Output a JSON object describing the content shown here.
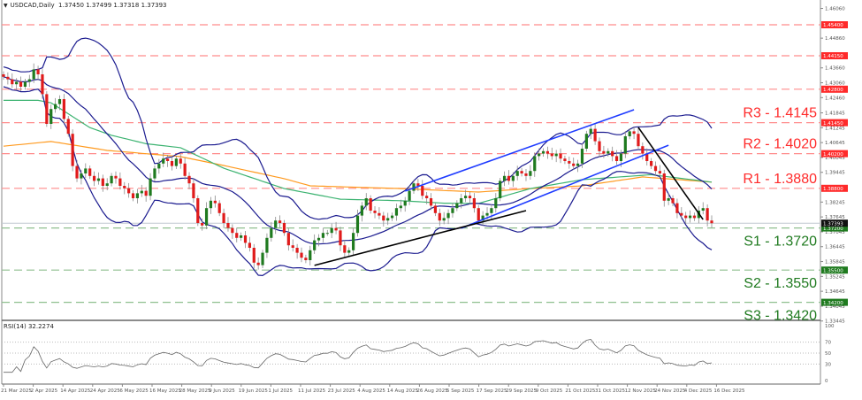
{
  "header": {
    "symbol": "USDCAD,Daily",
    "ohlc": "1.37450 1.37499 1.37318 1.37393"
  },
  "rsi_panel": {
    "label": "RSI(14) 32.2274",
    "ticks": [
      "100",
      "70",
      "50",
      "30",
      "0"
    ]
  },
  "colors": {
    "up": "#1f7a1f",
    "down": "#e01b1b",
    "bands": "#1b1b8f",
    "ma_fast": "#3cb371",
    "ma_slow": "#ff9a1f",
    "resistance": "#ff2a2a",
    "support": "#1f7a1f",
    "channel": "#1f3cff",
    "trend": "#000000"
  },
  "chart_data": {
    "type": "candlestick",
    "title": "USDCAD,Daily",
    "price_ticks": [
      "1.46060",
      "1.44860",
      "1.43660",
      "1.43060",
      "1.42460",
      "1.41845",
      "1.41245",
      "1.40645",
      "1.40045",
      "1.39445",
      "1.38245",
      "1.37645",
      "1.37045",
      "1.36445",
      "1.35845",
      "1.35245",
      "1.34645",
      "1.34045",
      "1.33445"
    ],
    "date_ticks": [
      "21 Mar 2025",
      "2 Apr 2025",
      "14 Apr 2025",
      "24 Apr 2025",
      "6 May 2025",
      "16 May 2025",
      "28 May 2025",
      "9 Jun 2025",
      "19 Jun 2025",
      "1 Jul 2025",
      "11 Jul 2025",
      "23 Jul 2025",
      "4 Aug 2025",
      "14 Aug 2025",
      "26 Aug 2025",
      "5 Sep 2025",
      "17 Sep 2025",
      "29 Sep 2025",
      "9 Oct 2025",
      "21 Oct 2025",
      "31 Oct 2025",
      "12 Nov 2025",
      "24 Nov 2025",
      "4 Dec 2025",
      "16 Dec 2025"
    ],
    "ylim": [
      1.3325,
      1.464
    ],
    "current_price": "1.37393",
    "closes": [
      1.433,
      1.432,
      1.43,
      1.431,
      1.429,
      1.431,
      1.432,
      1.436,
      1.434,
      1.426,
      1.414,
      1.42,
      1.422,
      1.424,
      1.416,
      1.41,
      1.397,
      1.392,
      1.394,
      1.396,
      1.393,
      1.391,
      1.392,
      1.389,
      1.39,
      1.393,
      1.392,
      1.389,
      1.388,
      1.386,
      1.384,
      1.386,
      1.387,
      1.385,
      1.392,
      1.396,
      1.398,
      1.4,
      1.399,
      1.397,
      1.4,
      1.398,
      1.393,
      1.39,
      1.384,
      1.374,
      1.373,
      1.38,
      1.383,
      1.382,
      1.378,
      1.374,
      1.372,
      1.37,
      1.368,
      1.369,
      1.366,
      1.364,
      1.358,
      1.357,
      1.362,
      1.368,
      1.372,
      1.375,
      1.374,
      1.37,
      1.365,
      1.364,
      1.362,
      1.36,
      1.359,
      1.363,
      1.367,
      1.368,
      1.37,
      1.37,
      1.372,
      1.371,
      1.365,
      1.362,
      1.363,
      1.37,
      1.377,
      1.381,
      1.384,
      1.379,
      1.378,
      1.377,
      1.375,
      1.376,
      1.377,
      1.38,
      1.381,
      1.383,
      1.387,
      1.39,
      1.389,
      1.385,
      1.384,
      1.381,
      1.378,
      1.375,
      1.376,
      1.378,
      1.38,
      1.382,
      1.384,
      1.385,
      1.384,
      1.38,
      1.375,
      1.377,
      1.378,
      1.38,
      1.384,
      1.391,
      1.393,
      1.391,
      1.393,
      1.395,
      1.394,
      1.393,
      1.395,
      1.401,
      1.402,
      1.403,
      1.402,
      1.401,
      1.402,
      1.4,
      1.399,
      1.398,
      1.397,
      1.398,
      1.404,
      1.41,
      1.412,
      1.407,
      1.403,
      1.402,
      1.403,
      1.401,
      1.399,
      1.402,
      1.409,
      1.411,
      1.41,
      1.405,
      1.402,
      1.399,
      1.397,
      1.395,
      1.394,
      1.383,
      1.384,
      1.382,
      1.378,
      1.377,
      1.376,
      1.377,
      1.376,
      1.379,
      1.38,
      1.375,
      1.37393
    ],
    "ma_fast": [
      [
        0,
        1.4235
      ],
      [
        8,
        1.4235
      ],
      [
        11,
        1.4225
      ],
      [
        20,
        1.4125
      ],
      [
        25,
        1.4094
      ],
      [
        33,
        1.406
      ],
      [
        41,
        1.4044
      ],
      [
        51,
        1.3961
      ],
      [
        65,
        1.3879
      ],
      [
        78,
        1.3836
      ],
      [
        92,
        1.383
      ],
      [
        102,
        1.382
      ],
      [
        110,
        1.3819
      ],
      [
        122,
        1.3879
      ],
      [
        134,
        1.3915
      ],
      [
        150,
        1.3935
      ],
      [
        164,
        1.3905
      ]
    ],
    "ma_slow": [
      [
        0,
        1.405
      ],
      [
        11,
        1.4069
      ],
      [
        24,
        1.4033
      ],
      [
        41,
        1.4008
      ],
      [
        51,
        1.3972
      ],
      [
        65,
        1.3919
      ],
      [
        71,
        1.389
      ],
      [
        92,
        1.3879
      ],
      [
        110,
        1.3865
      ],
      [
        122,
        1.3879
      ],
      [
        134,
        1.389
      ],
      [
        148,
        1.3926
      ],
      [
        164,
        1.3905
      ]
    ],
    "levels": [
      {
        "price": 1.454,
        "label": "1.45400",
        "kind": "resistance",
        "text": ""
      },
      {
        "price": 1.4415,
        "label": "1.44150",
        "kind": "resistance",
        "text": ""
      },
      {
        "price": 1.428,
        "label": "1.42800",
        "kind": "resistance",
        "text": ""
      },
      {
        "price": 1.4145,
        "label": "1.41450",
        "kind": "resistance",
        "text": "R3 - 1.4145"
      },
      {
        "price": 1.402,
        "label": "1.40200",
        "kind": "resistance",
        "text": "R2 - 1.4020"
      },
      {
        "price": 1.388,
        "label": "1.38800",
        "kind": "resistance",
        "text": "R1 - 1.3880"
      },
      {
        "price": 1.372,
        "label": "1.37200",
        "kind": "support",
        "text": "S1 - 1.3720"
      },
      {
        "price": 1.355,
        "label": "1.35500",
        "kind": "support",
        "text": "S2 - 1.3550"
      },
      {
        "price": 1.342,
        "label": "1.34200",
        "kind": "support",
        "text": "S3 - 1.3420"
      }
    ],
    "trendlines": [
      {
        "kind": "channel",
        "from": [
          93,
          1.3869
        ],
        "to": [
          146,
          1.4197
        ]
      },
      {
        "kind": "channel",
        "from": [
          106,
          1.3719
        ],
        "to": [
          154,
          1.4054
        ]
      },
      {
        "kind": "trend",
        "from": [
          72,
          1.3569
        ],
        "to": [
          121,
          1.379
        ]
      },
      {
        "kind": "trend",
        "from": [
          147,
          1.4126
        ],
        "to": [
          162,
          1.3754
        ]
      }
    ],
    "bollinger": {
      "period": 20,
      "dev": 2
    },
    "rsi": {
      "period": 14,
      "value": 32.2274,
      "levels": [
        70,
        50,
        30
      ]
    }
  }
}
